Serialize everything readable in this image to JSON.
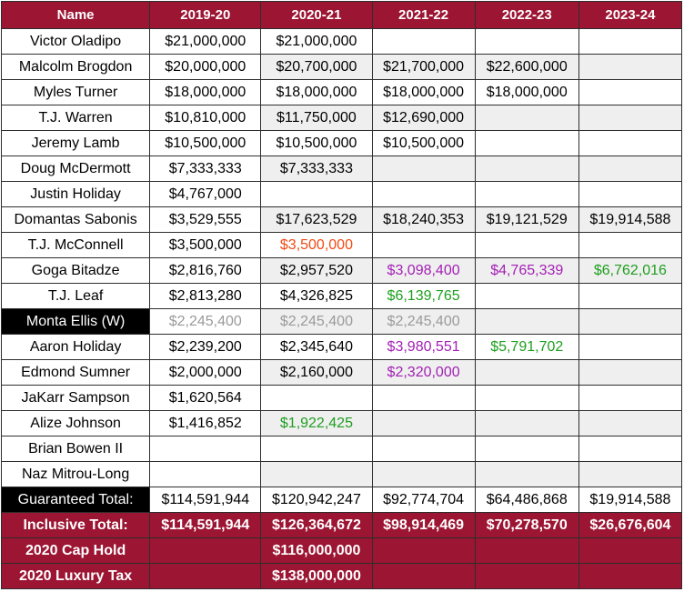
{
  "colors": {
    "header_bg": "#9c1533",
    "shade_bg": "#efefef",
    "red": "#f24a14",
    "purple": "#a320b5",
    "green": "#1e9e1e",
    "gray": "#9a9a9a"
  },
  "headers": [
    "Name",
    "2019-20",
    "2020-21",
    "2021-22",
    "2022-23",
    "2023-24"
  ],
  "players": [
    {
      "name": "Victor Oladipo",
      "cells": [
        {
          "v": "$21,000,000"
        },
        {
          "v": "$21,000,000"
        },
        {
          "v": ""
        },
        {
          "v": ""
        },
        {
          "v": ""
        }
      ]
    },
    {
      "name": "Malcolm Brogdon",
      "cells": [
        {
          "v": "$20,000,000"
        },
        {
          "v": "$20,700,000"
        },
        {
          "v": "$21,700,000"
        },
        {
          "v": "$22,600,000"
        },
        {
          "v": ""
        }
      ]
    },
    {
      "name": "Myles Turner",
      "cells": [
        {
          "v": "$18,000,000"
        },
        {
          "v": "$18,000,000"
        },
        {
          "v": "$18,000,000"
        },
        {
          "v": "$18,000,000"
        },
        {
          "v": ""
        }
      ]
    },
    {
      "name": "T.J. Warren",
      "cells": [
        {
          "v": "$10,810,000"
        },
        {
          "v": "$11,750,000"
        },
        {
          "v": "$12,690,000"
        },
        {
          "v": ""
        },
        {
          "v": ""
        }
      ]
    },
    {
      "name": "Jeremy Lamb",
      "cells": [
        {
          "v": "$10,500,000"
        },
        {
          "v": "$10,500,000"
        },
        {
          "v": "$10,500,000"
        },
        {
          "v": ""
        },
        {
          "v": ""
        }
      ]
    },
    {
      "name": "Doug McDermott",
      "cells": [
        {
          "v": "$7,333,333"
        },
        {
          "v": "$7,333,333"
        },
        {
          "v": ""
        },
        {
          "v": ""
        },
        {
          "v": ""
        }
      ]
    },
    {
      "name": "Justin Holiday",
      "cells": [
        {
          "v": "$4,767,000"
        },
        {
          "v": ""
        },
        {
          "v": ""
        },
        {
          "v": ""
        },
        {
          "v": ""
        }
      ]
    },
    {
      "name": "Domantas Sabonis",
      "cells": [
        {
          "v": "$3,529,555"
        },
        {
          "v": "$17,623,529"
        },
        {
          "v": "$18,240,353"
        },
        {
          "v": "$19,121,529"
        },
        {
          "v": "$19,914,588"
        }
      ]
    },
    {
      "name": "T.J. McConnell",
      "cells": [
        {
          "v": "$3,500,000"
        },
        {
          "v": "$3,500,000",
          "c": "red"
        },
        {
          "v": ""
        },
        {
          "v": ""
        },
        {
          "v": ""
        }
      ]
    },
    {
      "name": "Goga Bitadze",
      "cells": [
        {
          "v": "$2,816,760"
        },
        {
          "v": "$2,957,520"
        },
        {
          "v": "$3,098,400",
          "c": "purple"
        },
        {
          "v": "$4,765,339",
          "c": "purple"
        },
        {
          "v": "$6,762,016",
          "c": "green"
        }
      ]
    },
    {
      "name": "T.J. Leaf",
      "cells": [
        {
          "v": "$2,813,280"
        },
        {
          "v": "$4,326,825"
        },
        {
          "v": "$6,139,765",
          "c": "green"
        },
        {
          "v": ""
        },
        {
          "v": ""
        }
      ]
    },
    {
      "name": "Monta Ellis (W)",
      "black": true,
      "cells": [
        {
          "v": "$2,245,400",
          "c": "gray"
        },
        {
          "v": "$2,245,400",
          "c": "gray"
        },
        {
          "v": "$2,245,400",
          "c": "gray"
        },
        {
          "v": ""
        },
        {
          "v": ""
        }
      ]
    },
    {
      "name": "Aaron Holiday",
      "cells": [
        {
          "v": "$2,239,200"
        },
        {
          "v": "$2,345,640"
        },
        {
          "v": "$3,980,551",
          "c": "purple"
        },
        {
          "v": "$5,791,702",
          "c": "green"
        },
        {
          "v": ""
        }
      ]
    },
    {
      "name": "Edmond Sumner",
      "cells": [
        {
          "v": "$2,000,000"
        },
        {
          "v": "$2,160,000"
        },
        {
          "v": "$2,320,000",
          "c": "purple"
        },
        {
          "v": ""
        },
        {
          "v": ""
        }
      ]
    },
    {
      "name": "JaKarr Sampson",
      "cells": [
        {
          "v": "$1,620,564"
        },
        {
          "v": ""
        },
        {
          "v": ""
        },
        {
          "v": ""
        },
        {
          "v": ""
        }
      ]
    },
    {
      "name": "Alize Johnson",
      "cells": [
        {
          "v": "$1,416,852"
        },
        {
          "v": "$1,922,425",
          "c": "green"
        },
        {
          "v": ""
        },
        {
          "v": ""
        },
        {
          "v": ""
        }
      ]
    },
    {
      "name": "Brian Bowen II",
      "cells": [
        {
          "v": ""
        },
        {
          "v": ""
        },
        {
          "v": ""
        },
        {
          "v": ""
        },
        {
          "v": ""
        }
      ]
    },
    {
      "name": "Naz Mitrou-Long",
      "cells": [
        {
          "v": ""
        },
        {
          "v": ""
        },
        {
          "v": ""
        },
        {
          "v": ""
        },
        {
          "v": ""
        }
      ]
    }
  ],
  "guaranteed_total": {
    "label": "Guaranteed Total:",
    "values": [
      "$114,591,944",
      "$120,942,247",
      "$92,774,704",
      "$64,486,868",
      "$19,914,588"
    ]
  },
  "inclusive_total": {
    "label": "Inclusive Total:",
    "values": [
      "$114,591,944",
      "$126,364,672",
      "$98,914,469",
      "$70,278,570",
      "$26,676,604"
    ]
  },
  "cap_hold": {
    "label": "2020 Cap Hold",
    "values": [
      "",
      "$116,000,000",
      "",
      "",
      ""
    ]
  },
  "luxury_tax": {
    "label": "2020 Luxury Tax",
    "values": [
      "",
      "$138,000,000",
      "",
      "",
      ""
    ]
  }
}
